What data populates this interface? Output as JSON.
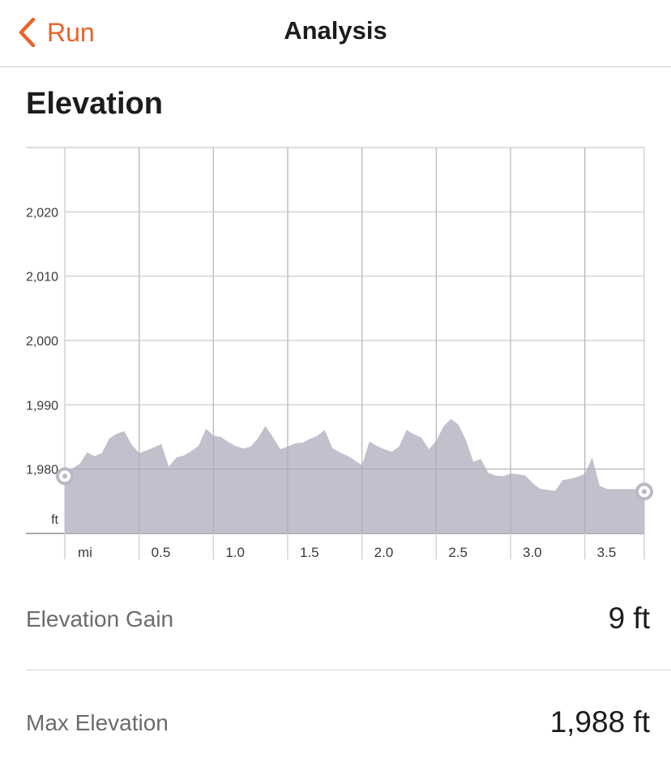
{
  "nav": {
    "back_label": "Run",
    "title": "Analysis"
  },
  "section": {
    "title": "Elevation"
  },
  "colors": {
    "accent": "#e8632a",
    "area": "#bcbcc9",
    "grid": "#d4d4d8",
    "marker": "#b9b9c6"
  },
  "icons": {
    "back": "chevron-left-icon"
  },
  "chart_data": {
    "type": "area",
    "xlabel": "",
    "ylabel": "",
    "x_unit_label": "mi",
    "y_unit_label": "ft",
    "xlim": [
      0,
      3.9
    ],
    "ylim": [
      1970,
      2030
    ],
    "x_ticks": [
      0.5,
      1.0,
      1.5,
      2.0,
      2.5,
      3.0,
      3.5
    ],
    "x_tick_labels": [
      "0.5",
      "1.0",
      "1.5",
      "2.0",
      "2.5",
      "3.0",
      "3.5"
    ],
    "y_ticks": [
      1980,
      1990,
      2000,
      2010,
      2020
    ],
    "y_tick_labels": [
      "1,980",
      "1,990",
      "2,000",
      "2,010",
      "2,020"
    ],
    "grid": true,
    "series": [
      {
        "x": [
          0,
          0.05,
          0.1,
          0.15,
          0.2,
          0.25,
          0.3,
          0.35,
          0.4,
          0.45,
          0.5,
          0.55,
          0.6,
          0.65,
          0.7,
          0.75,
          0.8,
          0.85,
          0.9,
          0.95,
          1.0,
          1.05,
          1.1,
          1.15,
          1.2,
          1.25,
          1.3,
          1.35,
          1.4,
          1.45,
          1.5,
          1.55,
          1.6,
          1.65,
          1.7,
          1.75,
          1.8,
          1.85,
          1.9,
          1.95,
          2.0,
          2.05,
          2.1,
          2.15,
          2.2,
          2.25,
          2.3,
          2.35,
          2.4,
          2.45,
          2.5,
          2.55,
          2.6,
          2.65,
          2.7,
          2.75,
          2.8,
          2.85,
          2.9,
          2.95,
          3.0,
          3.05,
          3.1,
          3.15,
          3.2,
          3.25,
          3.3,
          3.35,
          3.4,
          3.45,
          3.5,
          3.55,
          3.6,
          3.65,
          3.7,
          3.75,
          3.8,
          3.85,
          3.9
        ],
        "values": [
          1978.9,
          1980.1,
          1980.8,
          1982.6,
          1982.0,
          1982.5,
          1984.8,
          1985.5,
          1985.9,
          1983.8,
          1982.5,
          1982.9,
          1983.4,
          1983.9,
          1980.4,
          1981.8,
          1982.1,
          1982.8,
          1983.6,
          1986.3,
          1985.2,
          1985.0,
          1984.2,
          1983.6,
          1983.2,
          1983.5,
          1984.8,
          1986.7,
          1985.0,
          1983.1,
          1983.5,
          1984.0,
          1984.1,
          1984.7,
          1985.2,
          1986.1,
          1983.3,
          1982.6,
          1982.1,
          1981.4,
          1980.6,
          1984.3,
          1983.6,
          1983.1,
          1982.7,
          1983.5,
          1986.1,
          1985.4,
          1984.9,
          1983.1,
          1984.4,
          1986.7,
          1987.8,
          1986.9,
          1984.5,
          1981.1,
          1981.6,
          1979.4,
          1979.0,
          1978.9,
          1979.3,
          1979.2,
          1979.0,
          1977.8,
          1976.9,
          1976.8,
          1976.6,
          1978.3,
          1978.5,
          1978.8,
          1979.3,
          1981.8,
          1977.4,
          1976.9,
          1976.9,
          1976.9,
          1976.9,
          1976.9,
          1976.9
        ]
      }
    ]
  },
  "stats": [
    {
      "label": "Elevation Gain",
      "value": "9 ft"
    },
    {
      "label": "Max Elevation",
      "value": "1,988 ft"
    }
  ]
}
